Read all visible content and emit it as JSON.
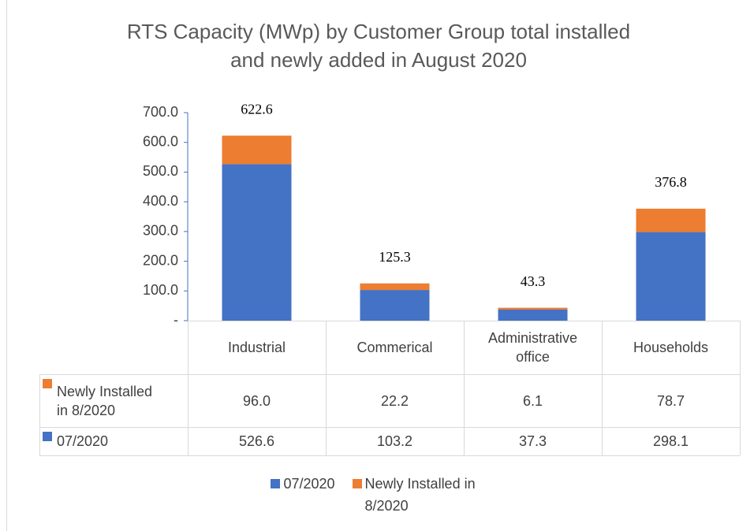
{
  "chart_data": {
    "type": "bar",
    "stacked": true,
    "title": "RTS Capacity (MWp) by Customer Group total installed and newly added in August 2020",
    "categories": [
      "Industrial",
      "Commerical",
      "Administrative office",
      "Households"
    ],
    "series": [
      {
        "name": "07/2020",
        "color": "#4472c4",
        "values": [
          526.6,
          103.2,
          37.3,
          298.1
        ]
      },
      {
        "name": "Newly Installed in 8/2020",
        "color": "#ed7d31",
        "values": [
          96.0,
          22.2,
          6.1,
          78.7
        ],
        "value_labels": [
          "96.0",
          "22.2",
          "6.1",
          "78.7"
        ]
      }
    ],
    "totals": [
      622.6,
      125.3,
      43.3,
      376.8
    ],
    "ylim": [
      0,
      700
    ],
    "yticks": [
      {
        "value": 0,
        "label": "-"
      },
      {
        "value": 100,
        "label": "100.0"
      },
      {
        "value": 200,
        "label": "200.0"
      },
      {
        "value": 300,
        "label": "300.0"
      },
      {
        "value": 400,
        "label": "400.0"
      },
      {
        "value": 500,
        "label": "500.0"
      },
      {
        "value": 600,
        "label": "600.0"
      },
      {
        "value": 700,
        "label": "700.0"
      }
    ],
    "grid": false,
    "legend": "bottom",
    "data_table": true
  }
}
